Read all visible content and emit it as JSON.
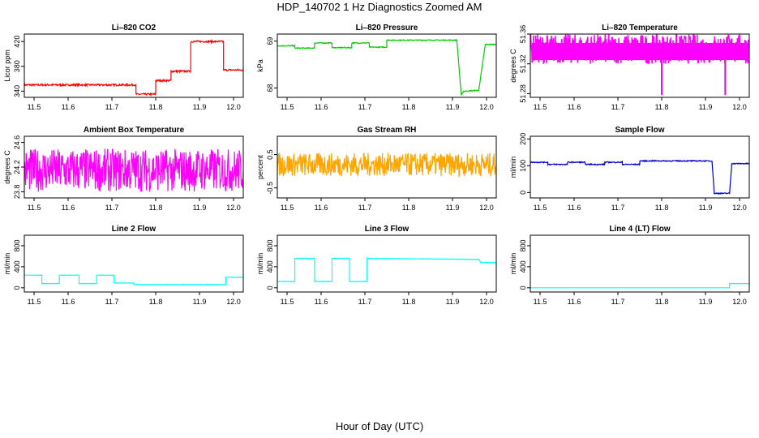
{
  "title": "HDP_140702  1 Hz Diagnostics Zoomed AM",
  "xlabel": "Hour of Day (UTC)",
  "chart_data": [
    {
      "type": "line",
      "title": "Li–820 CO2",
      "ylabel": "Licor ppm",
      "color": "#ff0000",
      "xlim": [
        11.5,
        12.0
      ],
      "ylim": [
        330,
        432
      ],
      "yticks": [
        340,
        380,
        420
      ],
      "x": [
        11.5,
        11.755,
        11.755,
        11.8,
        11.8,
        11.835,
        11.835,
        11.88,
        11.88,
        11.955,
        11.955,
        12.0
      ],
      "y": [
        350,
        350,
        335,
        335,
        357,
        357,
        372,
        372,
        420,
        420,
        374,
        374
      ],
      "noise": 1.5
    },
    {
      "type": "line",
      "title": "Li–820 Pressure",
      "ylabel": "kPa",
      "color": "#00cc00",
      "xlim": [
        11.5,
        12.0
      ],
      "ylim": [
        67.8,
        69.15
      ],
      "yticks": [
        68.0,
        69.0
      ],
      "x": [
        11.5,
        11.54,
        11.54,
        11.585,
        11.585,
        11.625,
        11.625,
        11.67,
        11.67,
        11.71,
        11.71,
        11.75,
        11.75,
        11.91,
        11.92,
        11.925,
        11.96,
        11.975,
        12.0
      ],
      "y": [
        68.9,
        68.9,
        68.85,
        68.85,
        68.96,
        68.96,
        68.86,
        68.86,
        68.96,
        68.96,
        68.87,
        68.87,
        69.02,
        69.02,
        67.84,
        67.93,
        67.95,
        68.93,
        68.93
      ],
      "noise": 0.01
    },
    {
      "type": "line",
      "title": "Li–820 Temperature",
      "ylabel": "degrees C",
      "color": "#ff00ff",
      "xlim": [
        11.5,
        12.0
      ],
      "ylim": [
        51.275,
        51.36
      ],
      "yticks": [
        51.28,
        51.32,
        51.36
      ],
      "x": [
        11.5,
        12.0
      ],
      "y": [
        51.34,
        51.34
      ],
      "noise": 0.02,
      "fill": true
    },
    {
      "type": "line",
      "title": "Ambient Box Temperature",
      "ylabel": "degrees C",
      "color": "#ff00ff",
      "xlim": [
        11.5,
        12.0
      ],
      "ylim": [
        23.7,
        24.7
      ],
      "yticks": [
        23.8,
        24.2,
        24.6
      ],
      "x": [
        11.5,
        12.0
      ],
      "y": [
        24.15,
        24.15
      ],
      "noise": 0.35
    },
    {
      "type": "line",
      "title": "Gas Stream RH",
      "ylabel": "percent",
      "color": "#ffa500",
      "xlim": [
        11.5,
        12.0
      ],
      "ylim": [
        -0.8,
        1.05
      ],
      "yticks": [
        -0.5,
        0.5
      ],
      "x": [
        11.5,
        12.0
      ],
      "y": [
        0.2,
        0.2
      ],
      "noise": 0.35
    },
    {
      "type": "line",
      "title": "Sample Flow",
      "ylabel": "ml/min",
      "color": "#0000cc",
      "xlim": [
        11.5,
        12.0
      ],
      "ylim": [
        -20,
        210
      ],
      "yticks": [
        0,
        100,
        200
      ],
      "x": [
        11.5,
        11.54,
        11.54,
        11.585,
        11.585,
        11.625,
        11.625,
        11.67,
        11.67,
        11.71,
        11.71,
        11.75,
        11.75,
        11.915,
        11.92,
        11.955,
        11.96,
        12.0
      ],
      "y": [
        113,
        113,
        105,
        105,
        113,
        113,
        105,
        105,
        113,
        113,
        105,
        105,
        118,
        118,
        -3,
        -3,
        108,
        108
      ],
      "noise": 2
    },
    {
      "type": "line",
      "title": "Line 2 Flow",
      "ylabel": "ml/min",
      "color": "#00ffff",
      "xlim": [
        11.5,
        12.0
      ],
      "ylim": [
        -80,
        1000
      ],
      "yticks": [
        0,
        400,
        800
      ],
      "x": [
        11.5,
        11.54,
        11.54,
        11.58,
        11.58,
        11.625,
        11.625,
        11.665,
        11.665,
        11.705,
        11.705,
        11.75,
        11.75,
        11.96,
        11.96,
        12.0
      ],
      "y": [
        240,
        240,
        80,
        80,
        240,
        240,
        80,
        80,
        240,
        240,
        90,
        90,
        65,
        65,
        200,
        200
      ],
      "noise": 3
    },
    {
      "type": "line",
      "title": "Line 3 Flow",
      "ylabel": "ml/min",
      "color": "#00ffff",
      "xlim": [
        11.5,
        12.0
      ],
      "ylim": [
        -80,
        1000
      ],
      "yticks": [
        0,
        400,
        800
      ],
      "x": [
        11.5,
        11.54,
        11.54,
        11.585,
        11.585,
        11.625,
        11.625,
        11.665,
        11.665,
        11.705,
        11.705,
        11.96,
        11.965,
        12.0
      ],
      "y": [
        120,
        120,
        560,
        560,
        120,
        120,
        560,
        560,
        120,
        120,
        560,
        540,
        480,
        480
      ],
      "noise": 4
    },
    {
      "type": "line",
      "title": "Line 4 (LT) Flow",
      "ylabel": "ml/min",
      "color": "#00ffff",
      "xlim": [
        11.5,
        12.0
      ],
      "ylim": [
        -80,
        1000
      ],
      "yticks": [
        0,
        400,
        800
      ],
      "x": [
        11.5,
        11.955,
        11.955,
        12.0
      ],
      "y": [
        0,
        0,
        80,
        80
      ],
      "noise": 0
    }
  ],
  "xticks": [
    11.5,
    11.6,
    11.7,
    11.8,
    11.9,
    12.0
  ]
}
